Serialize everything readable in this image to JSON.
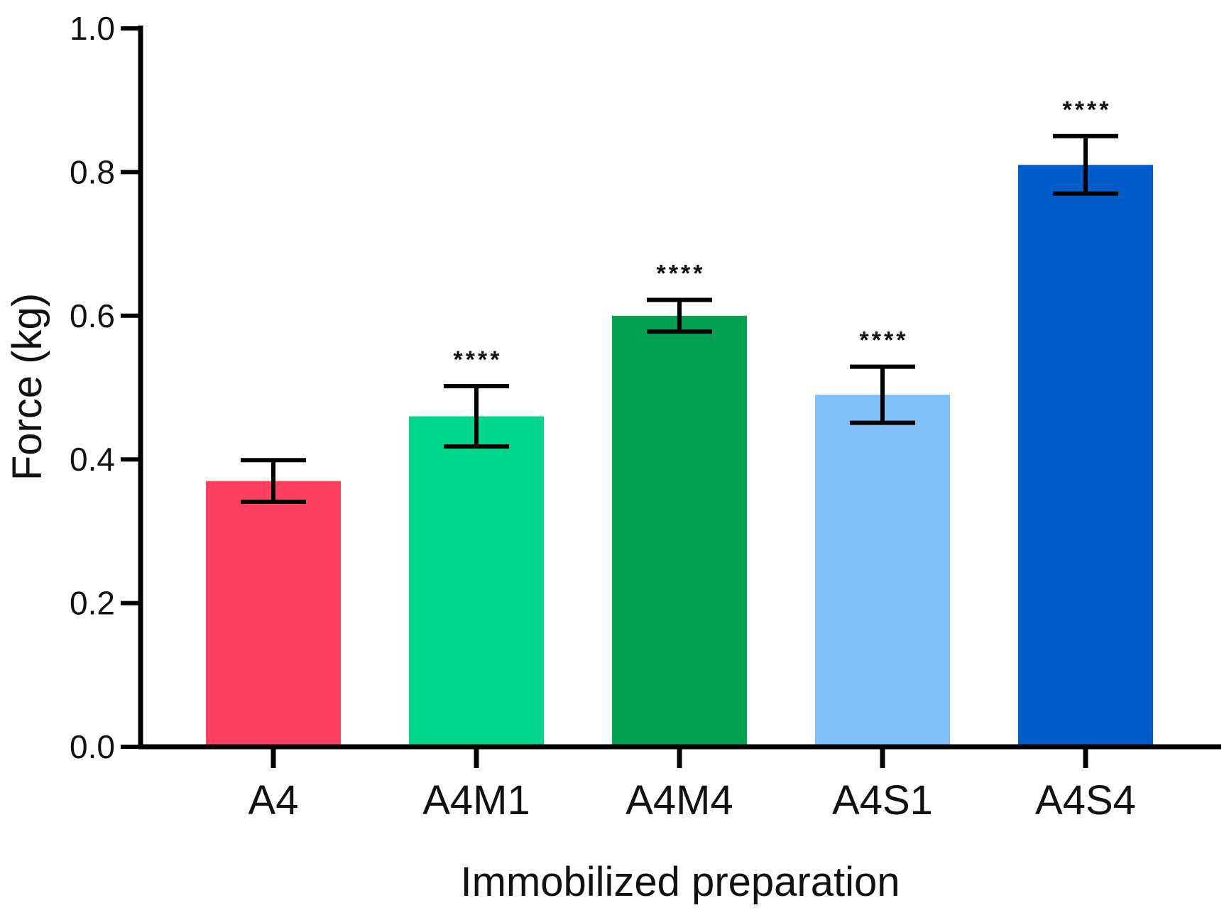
{
  "chart_data": {
    "type": "bar",
    "title": "",
    "xlabel": "Immobilized preparation",
    "ylabel": "Force (kg)",
    "ylim": [
      0,
      1.0
    ],
    "yticks": [
      0.0,
      0.2,
      0.4,
      0.6,
      0.8,
      1.0
    ],
    "ytick_labels": [
      "0.0",
      "0.2",
      "0.4",
      "0.6",
      "0.8",
      "1.0"
    ],
    "categories": [
      "A4",
      "A4M1",
      "A4M4",
      "A4S1",
      "A4S4"
    ],
    "values": [
      0.37,
      0.46,
      0.6,
      0.49,
      0.81
    ],
    "errors": [
      0.029,
      0.042,
      0.022,
      0.039,
      0.04
    ],
    "significance": [
      "",
      "****",
      "****",
      "****",
      "****"
    ],
    "colors": [
      "#FF4060",
      "#00D68F",
      "#00A352",
      "#80BFFA",
      "#005CC8"
    ],
    "grid": false,
    "legend": "none"
  }
}
